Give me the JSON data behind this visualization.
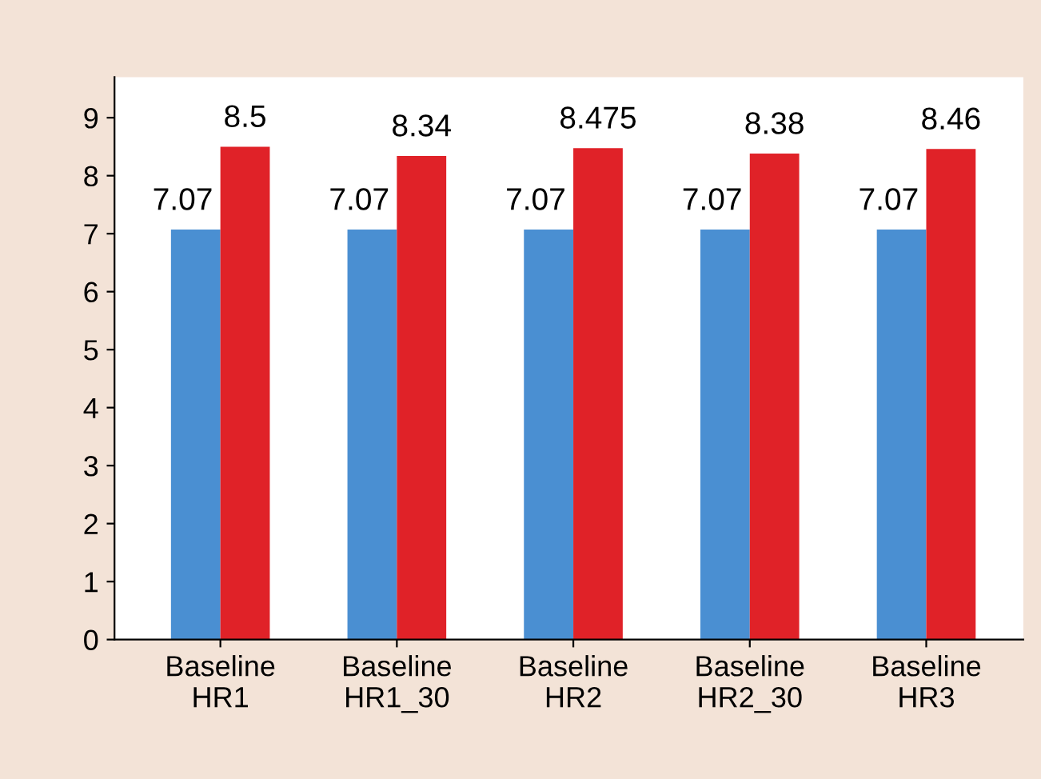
{
  "chart_data": {
    "type": "bar",
    "categories": [
      "Baseline\nHR1",
      "Baseline\nHR1_30",
      "Baseline\nHR2",
      "Baseline\nHR2_30",
      "Baseline\nHR3"
    ],
    "series": [
      {
        "color": "#4a8fd2",
        "values": [
          7.07,
          7.07,
          7.07,
          7.07,
          7.07
        ]
      },
      {
        "color": "#e02228",
        "values": [
          8.5,
          8.34,
          8.475,
          8.38,
          8.46
        ]
      }
    ],
    "ylim": [
      0,
      9.7
    ],
    "yticks": [
      0,
      1,
      2,
      3,
      4,
      5,
      6,
      7,
      8,
      9
    ],
    "grid": false,
    "legend": false,
    "data_labels": true
  }
}
